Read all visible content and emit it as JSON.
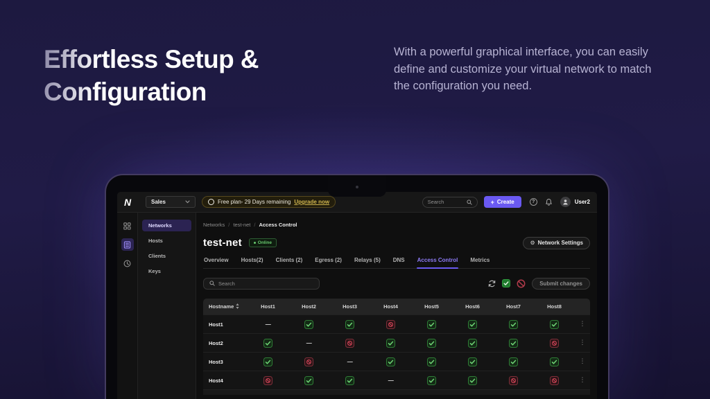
{
  "hero": {
    "title": "Effortless Setup &\nConfiguration",
    "description": "With a powerful graphical interface, you can easily define and customize your virtual network to match the configuration you need."
  },
  "app": {
    "topbar": {
      "logo_text": "N",
      "workspace_selector": "Sales",
      "plan_badge_text": "Free plan- 29 Days remaining",
      "upgrade_link": "Upgrade now",
      "search_placeholder": "Search",
      "create_button": "Create",
      "username": "User2"
    },
    "sidebar": {
      "items": [
        {
          "label": "Networks",
          "active": true
        },
        {
          "label": "Hosts",
          "active": false
        },
        {
          "label": "Clients",
          "active": false
        },
        {
          "label": "Keys",
          "active": false
        }
      ]
    },
    "breadcrumb": [
      "Networks",
      "test-net",
      "Access Control"
    ],
    "network": {
      "title": "test-net",
      "status": "Online",
      "settings_button": "Network Settings"
    },
    "tabs": [
      {
        "label": "Overview",
        "active": false
      },
      {
        "label": "Hosts(2)",
        "active": false
      },
      {
        "label": "Clients (2)",
        "active": false
      },
      {
        "label": "Egress (2)",
        "active": false
      },
      {
        "label": "Relays (5)",
        "active": false
      },
      {
        "label": "DNS",
        "active": false
      },
      {
        "label": "Access Control",
        "active": true
      },
      {
        "label": "Metrics",
        "active": false
      }
    ],
    "toolbar": {
      "search_placeholder": "Search",
      "submit_button": "Submit changes"
    },
    "access_matrix": {
      "columns": [
        "Hostname",
        "Host1",
        "Host2",
        "Host3",
        "Host4",
        "Host5",
        "Host6",
        "Host7",
        "Host8"
      ],
      "rows": [
        {
          "name": "Host1",
          "cells": [
            "dash",
            "check",
            "check",
            "block",
            "check",
            "check",
            "check",
            "check"
          ]
        },
        {
          "name": "Host2",
          "cells": [
            "check",
            "dash",
            "block",
            "check",
            "check",
            "check",
            "check",
            "block"
          ]
        },
        {
          "name": "Host3",
          "cells": [
            "check",
            "block",
            "dash",
            "check",
            "check",
            "check",
            "check",
            "check"
          ]
        },
        {
          "name": "Host4",
          "cells": [
            "block",
            "check",
            "check",
            "dash",
            "check",
            "check",
            "block",
            "block"
          ]
        }
      ]
    }
  },
  "colors": {
    "accent_purple": "#6a59f2",
    "allow_green": "#3fae4c",
    "deny_red": "#c2374b",
    "warning_yellow": "#cfb54e",
    "online_green": "#68c96e"
  }
}
